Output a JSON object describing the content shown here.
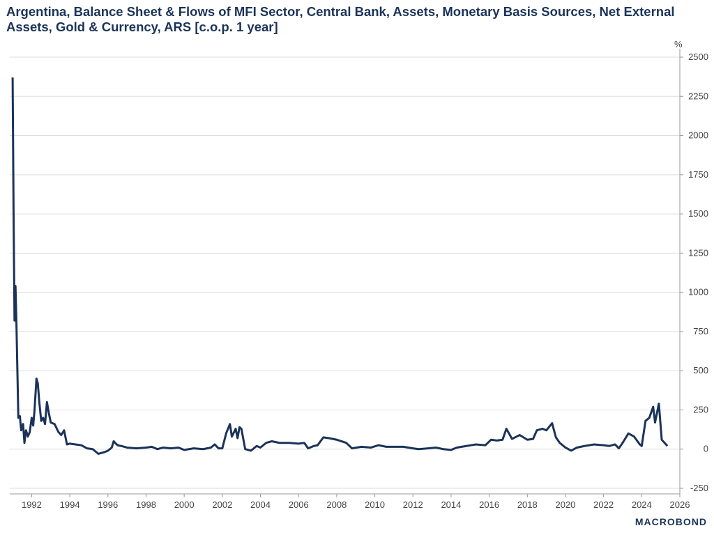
{
  "chart_data": {
    "type": "line",
    "title": "Argentina, Balance Sheet & Flows of MFI Sector, Central Bank, Assets, Monetary Basis Sources, Net External Assets, Gold & Currency, ARS [c.o.p. 1 year]",
    "y_unit": "%",
    "source": "MACROBOND",
    "x": [
      1991.0,
      1991.05,
      1991.1,
      1991.15,
      1991.2,
      1991.3,
      1991.38,
      1991.45,
      1991.55,
      1991.62,
      1991.7,
      1991.8,
      1991.9,
      1992.0,
      1992.08,
      1992.15,
      1992.25,
      1992.32,
      1992.4,
      1992.5,
      1992.6,
      1992.7,
      1992.8,
      1992.9,
      1993.0,
      1993.2,
      1993.4,
      1993.55,
      1993.7,
      1993.85,
      1994.0,
      1994.3,
      1994.6,
      1994.9,
      1995.2,
      1995.5,
      1995.8,
      1996.0,
      1996.2,
      1996.3,
      1996.5,
      1996.7,
      1997.0,
      1997.5,
      1998.0,
      1998.3,
      1998.6,
      1998.9,
      1999.3,
      1999.7,
      2000.0,
      2000.5,
      2001.0,
      2001.4,
      2001.6,
      2001.8,
      2002.0,
      2002.2,
      2002.4,
      2002.5,
      2002.7,
      2002.8,
      2002.9,
      2003.0,
      2003.2,
      2003.5,
      2003.8,
      2004.0,
      2004.3,
      2004.6,
      2005.0,
      2005.5,
      2006.0,
      2006.3,
      2006.5,
      2006.8,
      2007.0,
      2007.3,
      2007.6,
      2008.0,
      2008.5,
      2008.8,
      2009.3,
      2009.8,
      2010.2,
      2010.6,
      2011.0,
      2011.5,
      2012.0,
      2012.3,
      2012.8,
      2013.2,
      2013.6,
      2014.0,
      2014.3,
      2014.8,
      2015.3,
      2015.8,
      2016.1,
      2016.4,
      2016.7,
      2016.9,
      2017.2,
      2017.6,
      2018.0,
      2018.3,
      2018.5,
      2018.8,
      2019.0,
      2019.3,
      2019.5,
      2019.7,
      2020.0,
      2020.3,
      2020.6,
      2021.0,
      2021.5,
      2022.0,
      2022.3,
      2022.6,
      2022.8,
      2023.0,
      2023.3,
      2023.6,
      2023.9,
      2024.0,
      2024.2,
      2024.4,
      2024.6,
      2024.7,
      2024.9,
      2025.05,
      2025.2,
      2025.35
    ],
    "series": [
      {
        "color": "#1b3358",
        "values": [
          2370,
          1500,
          820,
          1040,
          800,
          200,
          210,
          120,
          160,
          40,
          120,
          80,
          110,
          200,
          150,
          250,
          450,
          420,
          300,
          180,
          200,
          160,
          300,
          230,
          170,
          160,
          110,
          90,
          120,
          30,
          35,
          30,
          25,
          5,
          0,
          -30,
          -20,
          -10,
          10,
          50,
          25,
          20,
          10,
          5,
          10,
          15,
          0,
          10,
          5,
          10,
          -5,
          5,
          0,
          10,
          30,
          5,
          5,
          100,
          160,
          80,
          130,
          70,
          140,
          130,
          0,
          -10,
          20,
          10,
          40,
          50,
          40,
          40,
          35,
          40,
          5,
          20,
          25,
          75,
          70,
          60,
          40,
          5,
          15,
          10,
          25,
          15,
          15,
          15,
          5,
          0,
          5,
          10,
          0,
          -5,
          10,
          20,
          30,
          25,
          60,
          55,
          60,
          130,
          65,
          90,
          60,
          65,
          120,
          130,
          120,
          165,
          75,
          40,
          10,
          -10,
          10,
          20,
          30,
          25,
          20,
          30,
          5,
          40,
          100,
          80,
          30,
          20,
          180,
          200,
          270,
          170,
          290,
          60,
          40,
          20
        ]
      }
    ],
    "xlim": [
      1990.85,
      2026
    ],
    "xticks": [
      1992,
      1994,
      1996,
      1998,
      2000,
      2002,
      2004,
      2006,
      2008,
      2010,
      2012,
      2014,
      2016,
      2018,
      2020,
      2022,
      2024,
      2026
    ],
    "ylim": [
      -250,
      2500
    ],
    "yticks": [
      -250,
      0,
      250,
      500,
      750,
      1000,
      1250,
      1500,
      1750,
      2000,
      2250,
      2500
    ],
    "grid": true
  }
}
